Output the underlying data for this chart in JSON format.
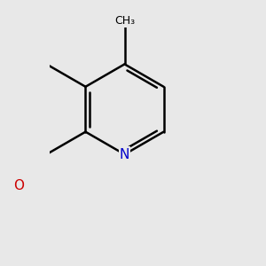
{
  "bg_color": "#e8e8e8",
  "bond_color": "#000000",
  "N_color": "#0000cc",
  "O_color": "#cc0000",
  "bond_width": 1.8,
  "font_size": 11,
  "label_font_size": 10,
  "L": 0.38,
  "xlim": [
    -0.3,
    1.1
  ],
  "ylim": [
    -1.3,
    0.9
  ]
}
